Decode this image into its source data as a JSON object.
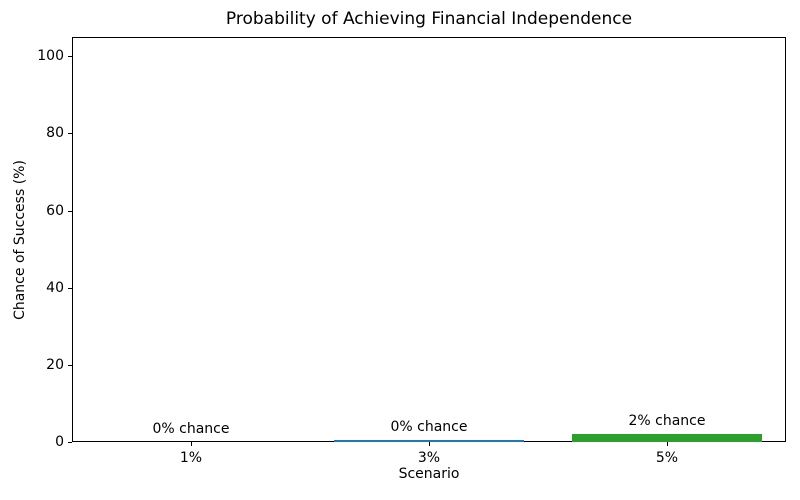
{
  "title": "Probability of Achieving Financial Independence",
  "chart_data": {
    "type": "bar",
    "title": "Probability of Achieving Financial Independence",
    "xlabel": "Scenario",
    "ylabel": "Chance of Success (%)",
    "categories": [
      "1%",
      "3%",
      "5%"
    ],
    "values": [
      0,
      0.5,
      2
    ],
    "bar_labels": [
      "0% chance",
      "0% chance",
      "2% chance"
    ],
    "bar_colors": [
      "#1f77b4",
      "#1f77b4",
      "#2ca02c"
    ],
    "ylim": [
      0,
      105
    ],
    "yticks": [
      0,
      20,
      40,
      60,
      80,
      100
    ],
    "grid": false,
    "legend": null,
    "text_color": "#000000",
    "spine_color": "#000000",
    "background_color": "#ffffff"
  }
}
